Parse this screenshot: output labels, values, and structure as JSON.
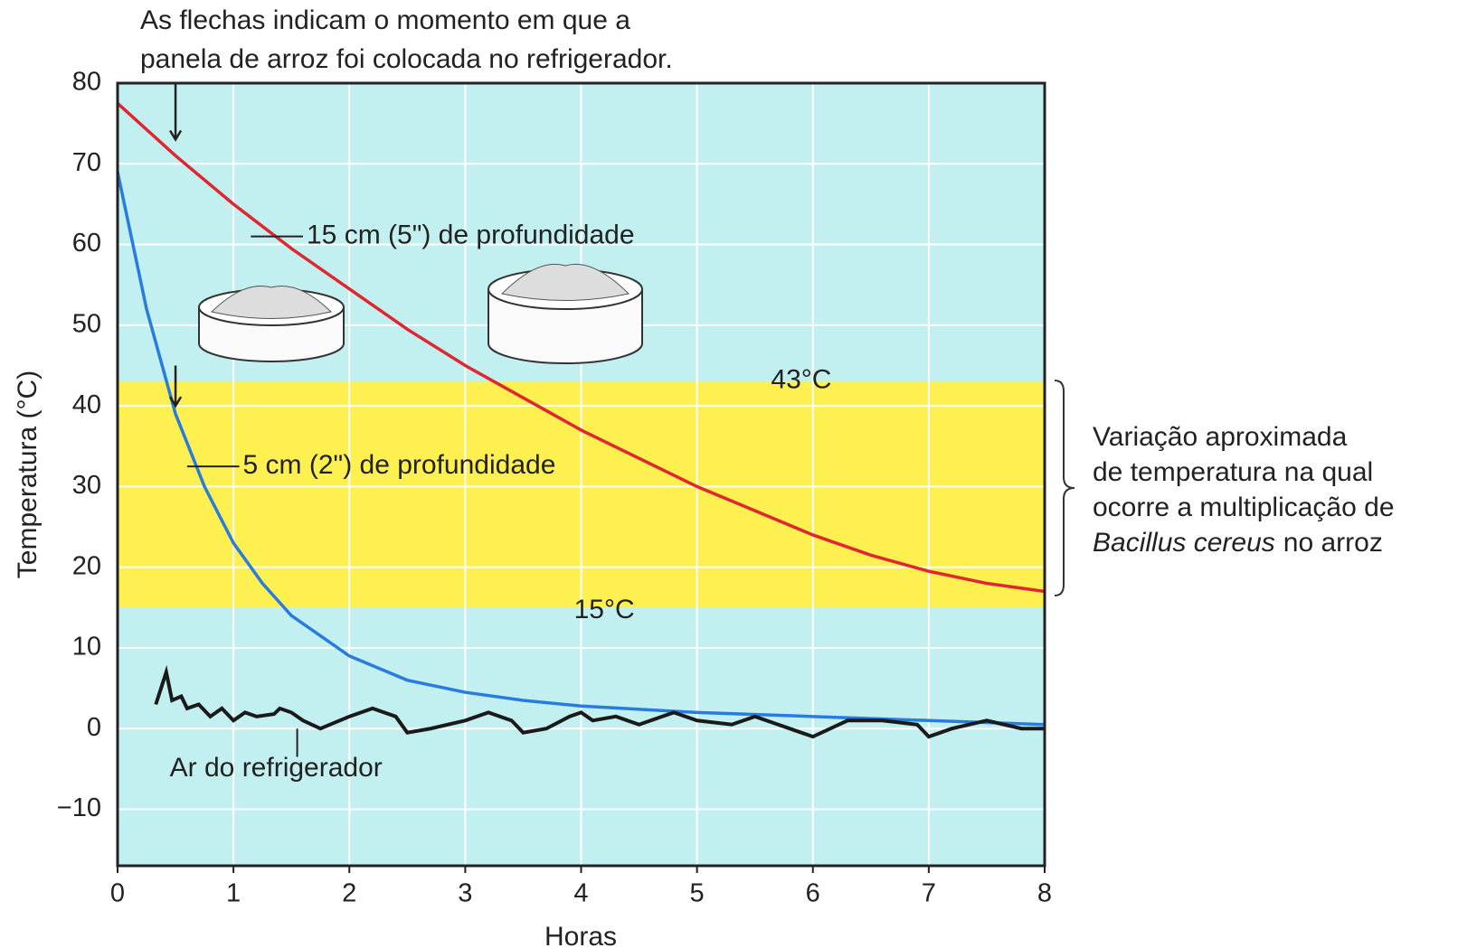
{
  "chart_data": {
    "type": "line",
    "title_lines": [
      "As flechas indicam o momento em que a",
      "panela de arroz foi colocada no refrigerador."
    ],
    "x_label": "Horas",
    "y_label": "Temperatura (°C)",
    "xlim": [
      0,
      8
    ],
    "xticks": [
      0,
      1,
      2,
      3,
      4,
      5,
      6,
      7,
      8
    ],
    "ylim": [
      -17,
      80
    ],
    "yticks": [
      {
        "value": -10,
        "label": "−10"
      },
      0,
      10,
      20,
      30,
      40,
      50,
      60,
      70,
      80
    ],
    "grid": true,
    "background": "#c2eff0",
    "band_color": "#fdf050",
    "band": {
      "low": 15,
      "high": 43,
      "low_label": "15°C",
      "high_label": "43°C"
    },
    "note_lines": [
      "Variação aproximada",
      "de temperatura na qual",
      "ocorre a multiplicação de"
    ],
    "note_italic": "Bacillus cereus",
    "note_end": "no arroz",
    "arrows_x": [
      0.5,
      0.5
    ],
    "series": [
      {
        "name": "15 cm (5\") de profundidade",
        "color": "#e0262f",
        "x": [
          0,
          0.5,
          1,
          1.5,
          2,
          2.5,
          3,
          3.5,
          4,
          4.5,
          5,
          5.5,
          6,
          6.5,
          7,
          7.5,
          8
        ],
        "values": [
          77.5,
          71,
          65,
          59.5,
          54.5,
          49.5,
          45,
          41,
          37,
          33.5,
          30,
          27,
          24,
          21.5,
          19.5,
          18,
          17
        ]
      },
      {
        "name": "5 cm (2\") de profundidade",
        "color": "#2a7be0",
        "x": [
          0,
          0.25,
          0.5,
          0.75,
          1,
          1.25,
          1.5,
          2,
          2.5,
          3,
          3.5,
          4,
          5,
          6,
          7,
          8
        ],
        "values": [
          69,
          52,
          39,
          30,
          23,
          18,
          14,
          9,
          6,
          4.5,
          3.5,
          2.8,
          2,
          1.5,
          1,
          0.5
        ]
      },
      {
        "name": "Ar do refrigerador",
        "color": "#1a1a1a",
        "x": [
          0.33,
          0.42,
          0.47,
          0.55,
          0.6,
          0.7,
          0.8,
          0.9,
          1,
          1.1,
          1.2,
          1.35,
          1.4,
          1.5,
          1.6,
          1.75,
          2,
          2.2,
          2.4,
          2.5,
          2.7,
          3,
          3.2,
          3.4,
          3.5,
          3.7,
          3.9,
          4,
          4.1,
          4.3,
          4.5,
          4.8,
          5,
          5.3,
          5.5,
          5.7,
          5.9,
          6,
          6.3,
          6.6,
          6.9,
          7,
          7.2,
          7.5,
          7.8,
          8
        ],
        "values": [
          3,
          7,
          3.5,
          4,
          2.5,
          3,
          1.5,
          2.5,
          1,
          2,
          1.5,
          1.8,
          2.5,
          2,
          1,
          0,
          1.5,
          2.5,
          1.5,
          -0.5,
          0,
          1,
          2,
          1,
          -0.5,
          0,
          1.5,
          2,
          1,
          1.5,
          0.5,
          2,
          1,
          0.5,
          1.5,
          0.5,
          -0.5,
          -1,
          1,
          1,
          0.5,
          -1,
          0,
          1,
          0,
          0
        ]
      }
    ]
  }
}
